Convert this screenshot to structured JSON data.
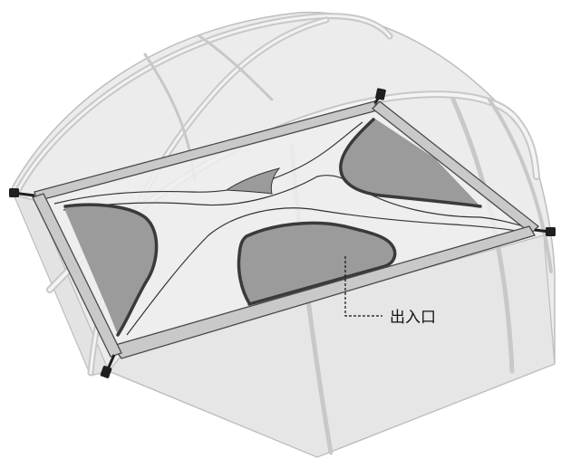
{
  "diagram": {
    "callout_label": "出入口"
  },
  "colors": {
    "tent_body": "#ececec",
    "tent_outline": "#bdbdbd",
    "frame_bar": "#c9c9c9",
    "frame_outline": "#4a4a4a",
    "panel": "#ebebeb",
    "cutout_fill": "#9b9b9b",
    "cutout_edge": "#3a3a3a",
    "pole_end": "#1f1f1f"
  },
  "icons": {
    "pole_tips": "pole-tip-icon"
  }
}
